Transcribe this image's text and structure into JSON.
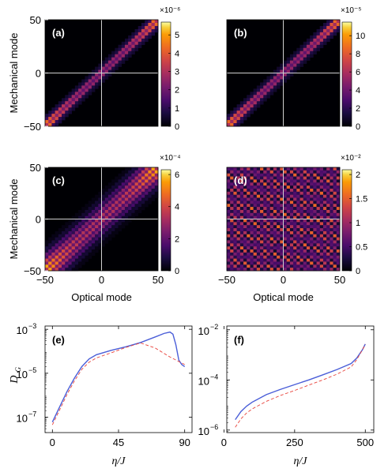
{
  "chart_data": [
    {
      "type": "heatmap",
      "panel_label": "(a)",
      "xlabel": "",
      "ylabel": "Mechanical mode",
      "xlim": [
        -50,
        50
      ],
      "ylim": [
        -50,
        50
      ],
      "x_ticks": [],
      "y_ticks": [
        "50",
        "0",
        "−50"
      ],
      "colorbar": {
        "min": 0,
        "max": 5.7,
        "ticks": [
          "5",
          "4",
          "3",
          "2",
          "1",
          "0"
        ],
        "tick_values": [
          5,
          4,
          3,
          2,
          1,
          0
        ],
        "exponent": "×10⁻⁶"
      },
      "pattern": "diagonal",
      "peak": 1.0,
      "grid": "crosshair at 0"
    },
    {
      "type": "heatmap",
      "panel_label": "(b)",
      "xlabel": "",
      "ylabel": "",
      "xlim": [
        -50,
        50
      ],
      "ylim": [
        -50,
        50
      ],
      "x_ticks": [],
      "y_ticks": [],
      "colorbar": {
        "min": 0,
        "max": 11.5,
        "ticks": [
          "10",
          "8",
          "6",
          "4",
          "2",
          "0"
        ],
        "tick_values": [
          10,
          8,
          6,
          4,
          2,
          0
        ],
        "exponent": "×10⁻⁵"
      },
      "pattern": "diagonal",
      "peak": 1.0,
      "grid": "crosshair at 0"
    },
    {
      "type": "heatmap",
      "panel_label": "(c)",
      "xlabel": "Optical mode",
      "ylabel": "Mechanical mode",
      "xlim": [
        -50,
        50
      ],
      "ylim": [
        -50,
        50
      ],
      "x_ticks": [
        "−50",
        "0",
        "50"
      ],
      "y_ticks": [
        "50",
        "0",
        "−50"
      ],
      "colorbar": {
        "min": 0,
        "max": 6.3,
        "ticks": [
          "6",
          "4",
          "2",
          "0"
        ],
        "tick_values": [
          6,
          4,
          2,
          0
        ],
        "exponent": "×10⁻⁴"
      },
      "pattern": "diagonal-wide",
      "peak": 1.0,
      "grid": "crosshair at 0"
    },
    {
      "type": "heatmap",
      "panel_label": "(d)",
      "xlabel": "Optical mode",
      "ylabel": "",
      "xlim": [
        -50,
        50
      ],
      "ylim": [
        -50,
        50
      ],
      "x_ticks": [
        "−50",
        "0",
        "50"
      ],
      "y_ticks": [],
      "colorbar": {
        "min": 0,
        "max": 2.1,
        "ticks": [
          "2",
          "1.5",
          "1",
          "0.5",
          "0"
        ],
        "tick_values": [
          2,
          1.5,
          1,
          0.5,
          0
        ],
        "exponent": "×10⁻²"
      },
      "pattern": "lattice",
      "peak": 0.75,
      "grid": "crosshair at 0"
    },
    {
      "type": "line",
      "panel_label": "(e)",
      "xlabel": "η/J",
      "ylabel": "D",
      "ylabel_sub": "G",
      "xlim": [
        -5,
        95
      ],
      "yscale": "log",
      "ylim_log10": [
        -7.7,
        -2.85
      ],
      "x_ticks": [
        0,
        45,
        90
      ],
      "y_ticks_log10": [
        -3,
        -5,
        -7
      ],
      "y_tick_labels": [
        "10",
        "10",
        "10"
      ],
      "y_tick_exponents": [
        "−3",
        "−5",
        "−7"
      ],
      "series": [
        {
          "style": "solid",
          "color": "#4a5ed8",
          "x": [
            0,
            5,
            10,
            15,
            20,
            25,
            30,
            40,
            50,
            60,
            70,
            76,
            80,
            82,
            84,
            86,
            88,
            90
          ],
          "y": [
            6e-08,
            3e-07,
            1.5e-06,
            6e-06,
            2e-05,
            4.5e-05,
            7e-05,
            0.00011,
            0.00016,
            0.00025,
            0.00045,
            0.00065,
            0.00075,
            0.0006,
            0.0002,
            4e-05,
            2.5e-05,
            2e-05
          ]
        },
        {
          "style": "dashed",
          "color": "#e8433c",
          "x": [
            0,
            5,
            10,
            15,
            20,
            25,
            30,
            40,
            50,
            60,
            70,
            80,
            90
          ],
          "y": [
            4.5e-08,
            2.2e-07,
            1.1e-06,
            4.5e-06,
            1.5e-05,
            3.2e-05,
            5e-05,
            8.5e-05,
            0.00015,
            0.00024,
            0.00014,
            5.5e-05,
            2.5e-05
          ]
        }
      ]
    },
    {
      "type": "line",
      "panel_label": "(f)",
      "xlabel": "η/J",
      "ylabel": "",
      "xlim": [
        10,
        530
      ],
      "yscale": "log",
      "ylim_log10": [
        -6.1,
        -1.85
      ],
      "x_ticks": [
        0,
        250,
        500
      ],
      "y_ticks_log10": [
        -2,
        -4,
        -6
      ],
      "y_tick_labels": [
        "10",
        "10",
        "10"
      ],
      "y_tick_exponents": [
        "−2",
        "−4",
        "−6"
      ],
      "series": [
        {
          "style": "solid",
          "color": "#4a5ed8",
          "x": [
            40,
            60,
            80,
            100,
            150,
            200,
            250,
            300,
            350,
            400,
            450,
            470,
            490,
            500
          ],
          "y": [
            2.6e-06,
            5.5e-06,
            9e-06,
            1.3e-05,
            2.6e-05,
            4.2e-05,
            6.5e-05,
            0.0001,
            0.00016,
            0.00026,
            0.00045,
            0.00075,
            0.0016,
            0.0027
          ]
        },
        {
          "style": "dashed",
          "color": "#e8433c",
          "x": [
            40,
            60,
            80,
            100,
            150,
            200,
            250,
            300,
            350,
            400,
            450,
            470,
            490,
            500
          ],
          "y": [
            1.3e-06,
            2.8e-06,
            4.8e-06,
            7e-06,
            1.4e-05,
            2.4e-05,
            3.8e-05,
            6.2e-05,
            0.0001,
            0.00017,
            0.00033,
            0.00065,
            0.0016,
            0.0026
          ]
        }
      ]
    }
  ]
}
